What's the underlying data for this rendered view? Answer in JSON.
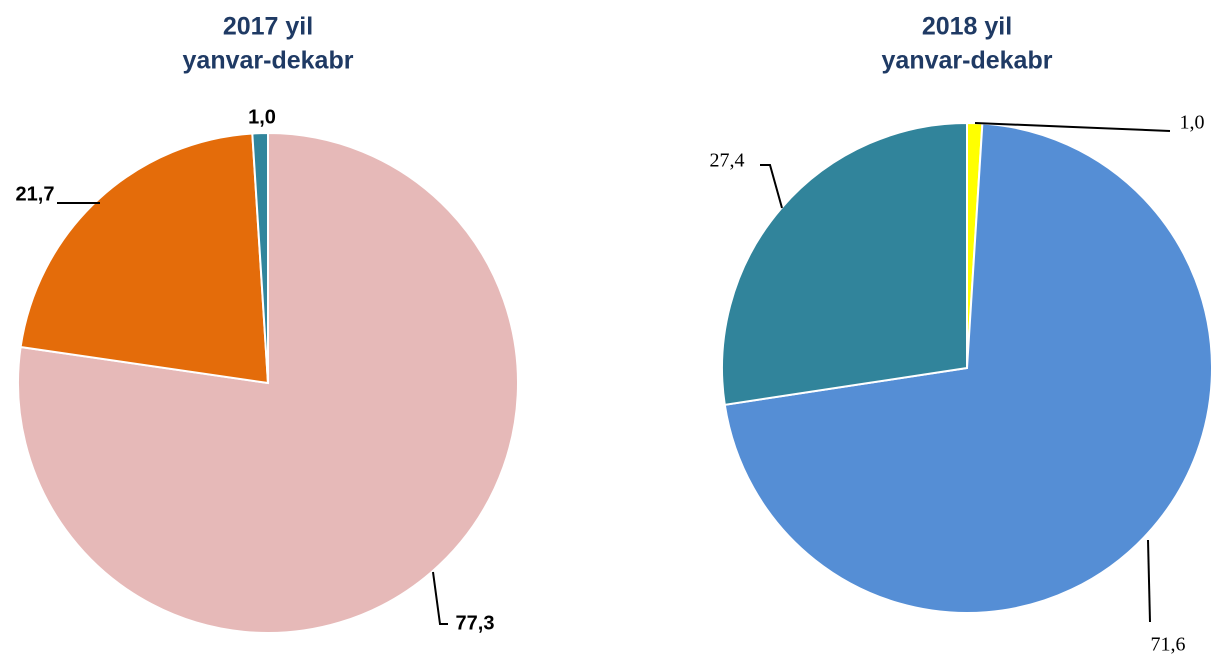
{
  "chart_data": [
    {
      "type": "pie",
      "title": "2017 yil",
      "subtitle": "yanvar-dekabr",
      "values": [
        77.3,
        21.7,
        1.0
      ],
      "value_labels": [
        "77,3",
        "21,7",
        "1,0"
      ],
      "colors": [
        "#e6b9b8",
        "#e46c0a",
        "#31859c"
      ]
    },
    {
      "type": "pie",
      "title": "2018 yil",
      "subtitle": "yanvar-dekabr",
      "values": [
        1.0,
        71.6,
        27.4
      ],
      "value_labels": [
        "1,0",
        "71,6",
        "27,4"
      ],
      "colors": [
        "#ffff00",
        "#558ed5",
        "#31849b"
      ]
    }
  ]
}
